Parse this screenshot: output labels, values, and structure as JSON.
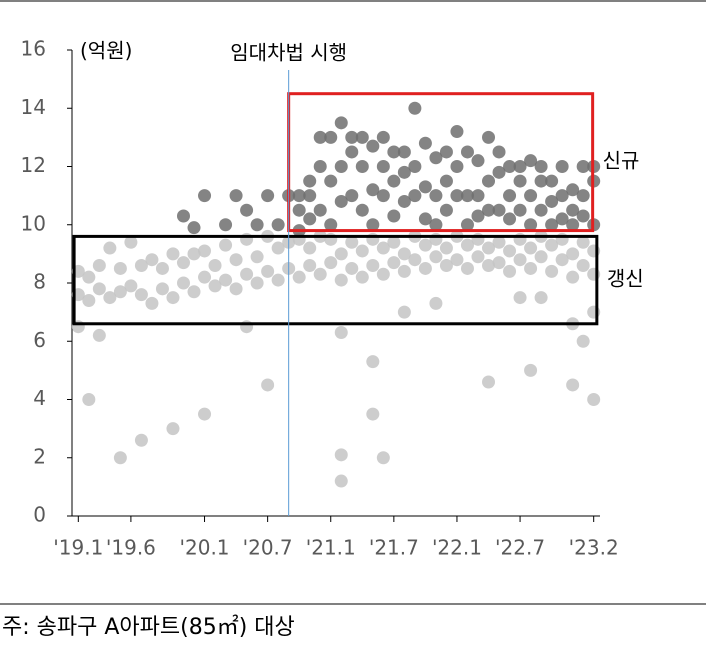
{
  "chart_data": {
    "type": "scatter",
    "y_unit": "(억원)",
    "annotation": {
      "x": 20,
      "text": "임대차법 시행",
      "color": "#5b9bd5"
    },
    "note": "주: 송파구 A아파트(85㎡) 대상",
    "xlim": [
      -0.6,
      49.6
    ],
    "xticks": [
      {
        "value": 0,
        "label": "'19.1"
      },
      {
        "value": 5,
        "label": "'19.6"
      },
      {
        "value": 12,
        "label": "'20.1"
      },
      {
        "value": 18,
        "label": "'20.7"
      },
      {
        "value": 24,
        "label": "'21.1"
      },
      {
        "value": 30,
        "label": "'21.7"
      },
      {
        "value": 36,
        "label": "'22.1"
      },
      {
        "value": 42,
        "label": "'22.7"
      },
      {
        "value": 49,
        "label": "'23.2"
      }
    ],
    "ylim": [
      0,
      16
    ],
    "yticks": [
      0,
      2,
      4,
      6,
      8,
      10,
      12,
      14,
      16
    ],
    "series": [
      {
        "name": "갱신",
        "color": "#c4c4c4",
        "box": {
          "xlim": [
            -0.4,
            49.3
          ],
          "ylim": [
            6.6,
            9.6
          ],
          "color": "#000000"
        },
        "x": [
          0,
          0,
          1,
          1,
          2,
          2,
          3,
          3,
          4,
          4,
          5,
          5,
          6,
          6,
          7,
          7,
          8,
          8,
          9,
          9,
          10,
          10,
          11,
          11,
          12,
          12,
          13,
          13,
          14,
          14,
          15,
          15,
          16,
          16,
          17,
          17,
          18,
          18,
          19,
          19,
          20,
          20,
          21,
          21,
          22,
          22,
          23,
          23,
          24,
          24,
          25,
          25,
          26,
          26,
          27,
          27,
          28,
          28,
          29,
          29,
          30,
          30,
          31,
          31,
          32,
          32,
          33,
          33,
          34,
          34,
          35,
          35,
          36,
          36,
          37,
          37,
          38,
          38,
          39,
          39,
          40,
          40,
          41,
          41,
          42,
          42,
          43,
          43,
          44,
          44,
          45,
          45,
          46,
          46,
          47,
          47,
          48,
          48,
          49,
          49,
          0,
          1,
          2,
          4,
          6,
          9,
          12,
          16,
          18,
          25,
          25,
          25,
          28,
          28,
          29,
          39,
          43,
          47,
          48,
          49,
          47,
          31,
          34,
          42,
          44,
          49
        ],
        "values": [
          7.6,
          8.4,
          7.4,
          8.2,
          7.8,
          8.6,
          7.5,
          9.2,
          7.7,
          8.5,
          7.9,
          9.4,
          7.6,
          8.6,
          7.3,
          8.8,
          7.8,
          8.5,
          7.5,
          9,
          8,
          8.7,
          7.7,
          9,
          8.2,
          9.1,
          7.9,
          8.6,
          8.1,
          9.3,
          7.8,
          8.8,
          8.3,
          9.5,
          8,
          8.9,
          8.4,
          9.6,
          8.1,
          9.2,
          8.5,
          9.4,
          8.2,
          9.5,
          8.6,
          9.2,
          8.3,
          9.6,
          8.7,
          9.5,
          8.1,
          9,
          8.5,
          9.4,
          8.2,
          9.1,
          8.6,
          9.5,
          8.3,
          9.2,
          8.7,
          9.4,
          8.4,
          9,
          8.8,
          9.6,
          8.5,
          9.3,
          8.9,
          9.5,
          8.6,
          9.2,
          8.8,
          9.6,
          8.5,
          9.3,
          8.9,
          9.5,
          8.6,
          9.2,
          8.7,
          9.4,
          8.4,
          9.1,
          8.8,
          9.5,
          8.5,
          9.2,
          8.9,
          9.6,
          8.4,
          9.3,
          8.8,
          9.5,
          8.2,
          9,
          8.6,
          9.4,
          8.3,
          9.1,
          6.5,
          4,
          6.2,
          2,
          2.6,
          3,
          3.5,
          6.5,
          4.5,
          2.1,
          1.2,
          6.3,
          5.3,
          3.5,
          2,
          4.6,
          5,
          4.5,
          6,
          4,
          6.6,
          7,
          7.3,
          7.5,
          7.5,
          7
        ]
      },
      {
        "name": "신규",
        "color": "#6e6e6e",
        "box": {
          "xlim": [
            20,
            48.9
          ],
          "ylim": [
            9.8,
            14.5
          ],
          "color": "#e02020"
        },
        "x": [
          10,
          11,
          12,
          14,
          15,
          16,
          17,
          18,
          19,
          20,
          21,
          21,
          21,
          22,
          22,
          22,
          23,
          23,
          23,
          24,
          24,
          24,
          25,
          25,
          25,
          26,
          26,
          26,
          27,
          27,
          27,
          28,
          28,
          28,
          29,
          29,
          29,
          30,
          30,
          30,
          31,
          31,
          31,
          32,
          32,
          32,
          33,
          33,
          33,
          34,
          34,
          34,
          35,
          35,
          35,
          36,
          36,
          36,
          37,
          37,
          37,
          38,
          38,
          38,
          39,
          39,
          39,
          40,
          40,
          40,
          41,
          41,
          41,
          42,
          42,
          42,
          43,
          43,
          43,
          44,
          44,
          44,
          45,
          45,
          45,
          46,
          46,
          46,
          47,
          47,
          47,
          48,
          48,
          48,
          49,
          49,
          49
        ],
        "values": [
          10.3,
          9.9,
          11,
          10,
          11,
          10.5,
          10,
          11,
          10,
          11,
          10.5,
          11,
          9.8,
          11,
          10.2,
          11.5,
          12,
          13,
          10.5,
          13,
          11.5,
          10,
          13.5,
          12,
          10.8,
          12.5,
          11,
          13,
          12,
          13,
          10.5,
          12.7,
          11.2,
          10,
          13,
          12,
          11,
          12.5,
          11.5,
          10.3,
          11.8,
          12.5,
          10.8,
          14,
          11,
          12,
          12.8,
          11.3,
          10.2,
          12.3,
          11,
          10,
          12.5,
          11.5,
          10.5,
          13.2,
          12,
          11,
          12.5,
          11,
          10,
          12.2,
          11,
          10.3,
          13,
          11.5,
          10.5,
          11.8,
          10.5,
          12.5,
          12,
          11,
          10.2,
          11.5,
          10.5,
          12,
          11,
          12.2,
          10,
          11.5,
          10.5,
          12,
          10.8,
          11.5,
          10,
          11,
          10.2,
          12,
          10.5,
          11.2,
          10,
          12,
          11,
          10.3,
          10,
          11.5,
          12
        ]
      }
    ]
  }
}
